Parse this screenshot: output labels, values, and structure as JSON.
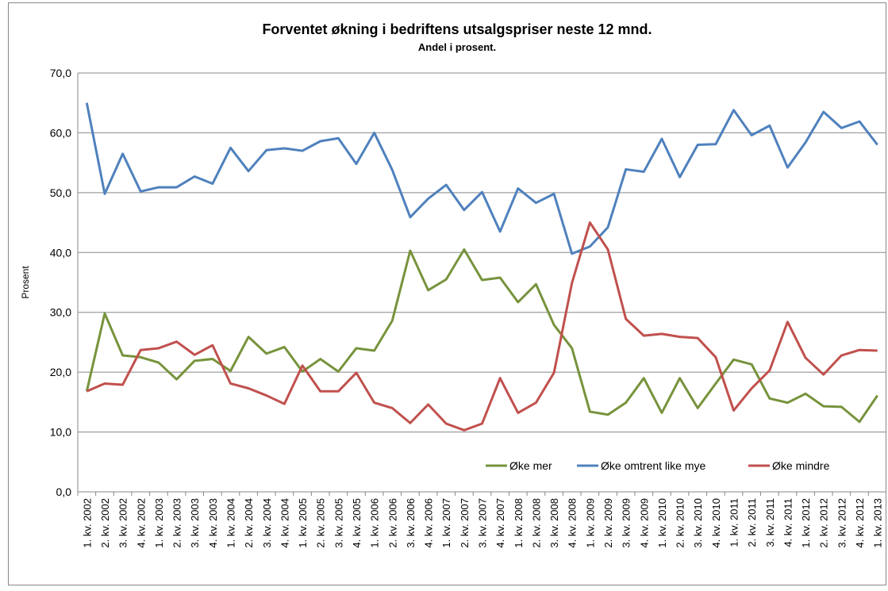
{
  "chart_data": {
    "type": "line",
    "title": "Forventet økning i bedriftens utsalgspriser neste 12 mnd.",
    "subtitle": "Andel i prosent.",
    "y_label": "Prosent",
    "categories": [
      "1. kv. 2002",
      "2. kv. 2002",
      "3. kv. 2002",
      "4. kv. 2002",
      "1. kv. 2003",
      "2. kv. 2003",
      "3. kv. 2003",
      "4. kv. 2003",
      "1. kv. 2004",
      "2. kv. 2004",
      "3. kv. 2004",
      "4. kv. 2004",
      "1. kv. 2005",
      "2. kv. 2005",
      "3. kv. 2005",
      "4. kv. 2005",
      "1. kv. 2006",
      "2. kv. 2006",
      "3. kv. 2006",
      "4. kv. 2006",
      "1. kv. 2007",
      "2. kv. 2007",
      "3. kv. 2007",
      "4. kv. 2007",
      "1. kv. 2008",
      "2. kv. 2008",
      "3. kv. 2008",
      "4. kv. 2008",
      "1. kv. 2009",
      "2. kv. 2009",
      "3. kv. 2009",
      "4. kv. 2009",
      "1. kv. 2010",
      "2. kv. 2010",
      "3. kv. 2010",
      "4. kv. 2010",
      "1. kv. 2011",
      "2. kv. 2011",
      "3. kv. 2011",
      "4. kv. 2011",
      "1. kv. 2012",
      "2. kv. 2012",
      "3. kv. 2012",
      "4. kv. 2012",
      "1. kv. 2013"
    ],
    "series": [
      {
        "name": "Øke mer",
        "color": "#77933c",
        "values": [
          16.8,
          29.8,
          22.8,
          22.5,
          21.6,
          18.8,
          21.9,
          22.2,
          20.2,
          25.9,
          23.1,
          24.2,
          20.1,
          22.2,
          20.1,
          24.0,
          23.6,
          28.6,
          40.3,
          33.7,
          35.5,
          40.5,
          35.4,
          35.8,
          31.7,
          34.7,
          27.9,
          24.0,
          13.4,
          12.9,
          14.9,
          19.0,
          13.2,
          19.0,
          14.0,
          18.1,
          22.1,
          21.3,
          15.6,
          14.9,
          16.4,
          14.3,
          14.2,
          11.7,
          16.1
        ]
      },
      {
        "name": "Øke omtrent like mye",
        "color": "#4f81bd",
        "values": [
          65.0,
          49.8,
          56.5,
          50.2,
          50.9,
          50.9,
          52.7,
          51.5,
          57.5,
          53.6,
          57.1,
          57.4,
          57.0,
          58.6,
          59.1,
          54.8,
          60.0,
          53.8,
          45.9,
          49.0,
          51.3,
          47.1,
          50.1,
          43.5,
          50.7,
          48.3,
          49.8,
          39.8,
          41.0,
          44.2,
          53.9,
          53.5,
          59.0,
          52.6,
          58.0,
          58.1,
          63.8,
          59.6,
          61.2,
          54.2,
          58.4,
          63.5,
          60.8,
          61.9,
          58.0
        ]
      },
      {
        "name": "Øke mindre",
        "color": "#c0504d",
        "values": [
          16.8,
          18.1,
          17.9,
          23.7,
          24.0,
          25.1,
          22.9,
          24.5,
          18.1,
          17.3,
          16.1,
          14.7,
          21.1,
          16.8,
          16.8,
          19.9,
          14.9,
          14.0,
          11.5,
          14.6,
          11.4,
          10.3,
          11.4,
          19.0,
          13.2,
          14.9,
          19.9,
          34.9,
          45.0,
          40.5,
          28.9,
          26.1,
          26.4,
          25.9,
          25.7,
          22.5,
          13.6,
          17.3,
          20.3,
          28.4,
          22.4,
          19.6,
          22.8,
          23.7,
          23.6
        ]
      }
    ],
    "ylim": [
      0,
      70
    ],
    "yticks": [
      {
        "value": 0,
        "label": "0,0"
      },
      {
        "value": 10,
        "label": "10,0"
      },
      {
        "value": 20,
        "label": "20,0"
      },
      {
        "value": 30,
        "label": "30,0"
      },
      {
        "value": 40,
        "label": "40,0"
      },
      {
        "value": 50,
        "label": "50,0"
      },
      {
        "value": 60,
        "label": "60,0"
      },
      {
        "value": 70,
        "label": "70,0"
      }
    ],
    "grid": true,
    "legend": "bottom-right"
  }
}
